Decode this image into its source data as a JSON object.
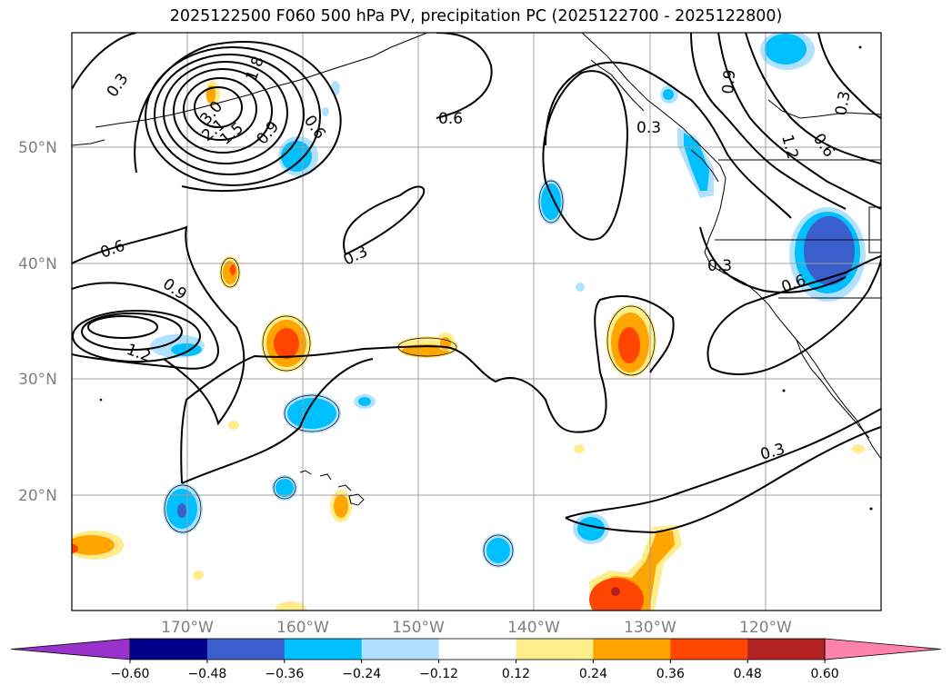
{
  "title": "2025122500 F060 500 hPa PV, precipitation PC (2025122700 - 2025122800)",
  "lat_labels": [
    "50°N",
    "40°N",
    "30°N",
    "20°N"
  ],
  "lon_labels": [
    "170°W",
    "160°W",
    "150°W",
    "140°W",
    "130°W",
    "120°W"
  ],
  "contour_labels": [
    "0.3",
    "0.6",
    "0.9",
    "1.2",
    "1.5",
    "1.8",
    "2.1",
    "3.0"
  ],
  "pv_contour_values": [
    0.3,
    0.6,
    0.9,
    1.2,
    1.5,
    1.8,
    2.1,
    2.4,
    2.7,
    3.0
  ],
  "colorbar": {
    "ticks": [
      "−0.60",
      "−0.48",
      "−0.36",
      "−0.24",
      "−0.12",
      "0.12",
      "0.24",
      "0.36",
      "0.48",
      "0.60"
    ],
    "colors": [
      "#9932cc",
      "#00008b",
      "#3a5fcd",
      "#00bfff",
      "#b0e2ff",
      "#ffffff",
      "#ffec8b",
      "#ffa500",
      "#ff4500",
      "#b22222",
      "#ff82ab"
    ]
  },
  "colors": {
    "contour": "#000000",
    "grid": "#a0a0a0",
    "coast": "#000000"
  }
}
